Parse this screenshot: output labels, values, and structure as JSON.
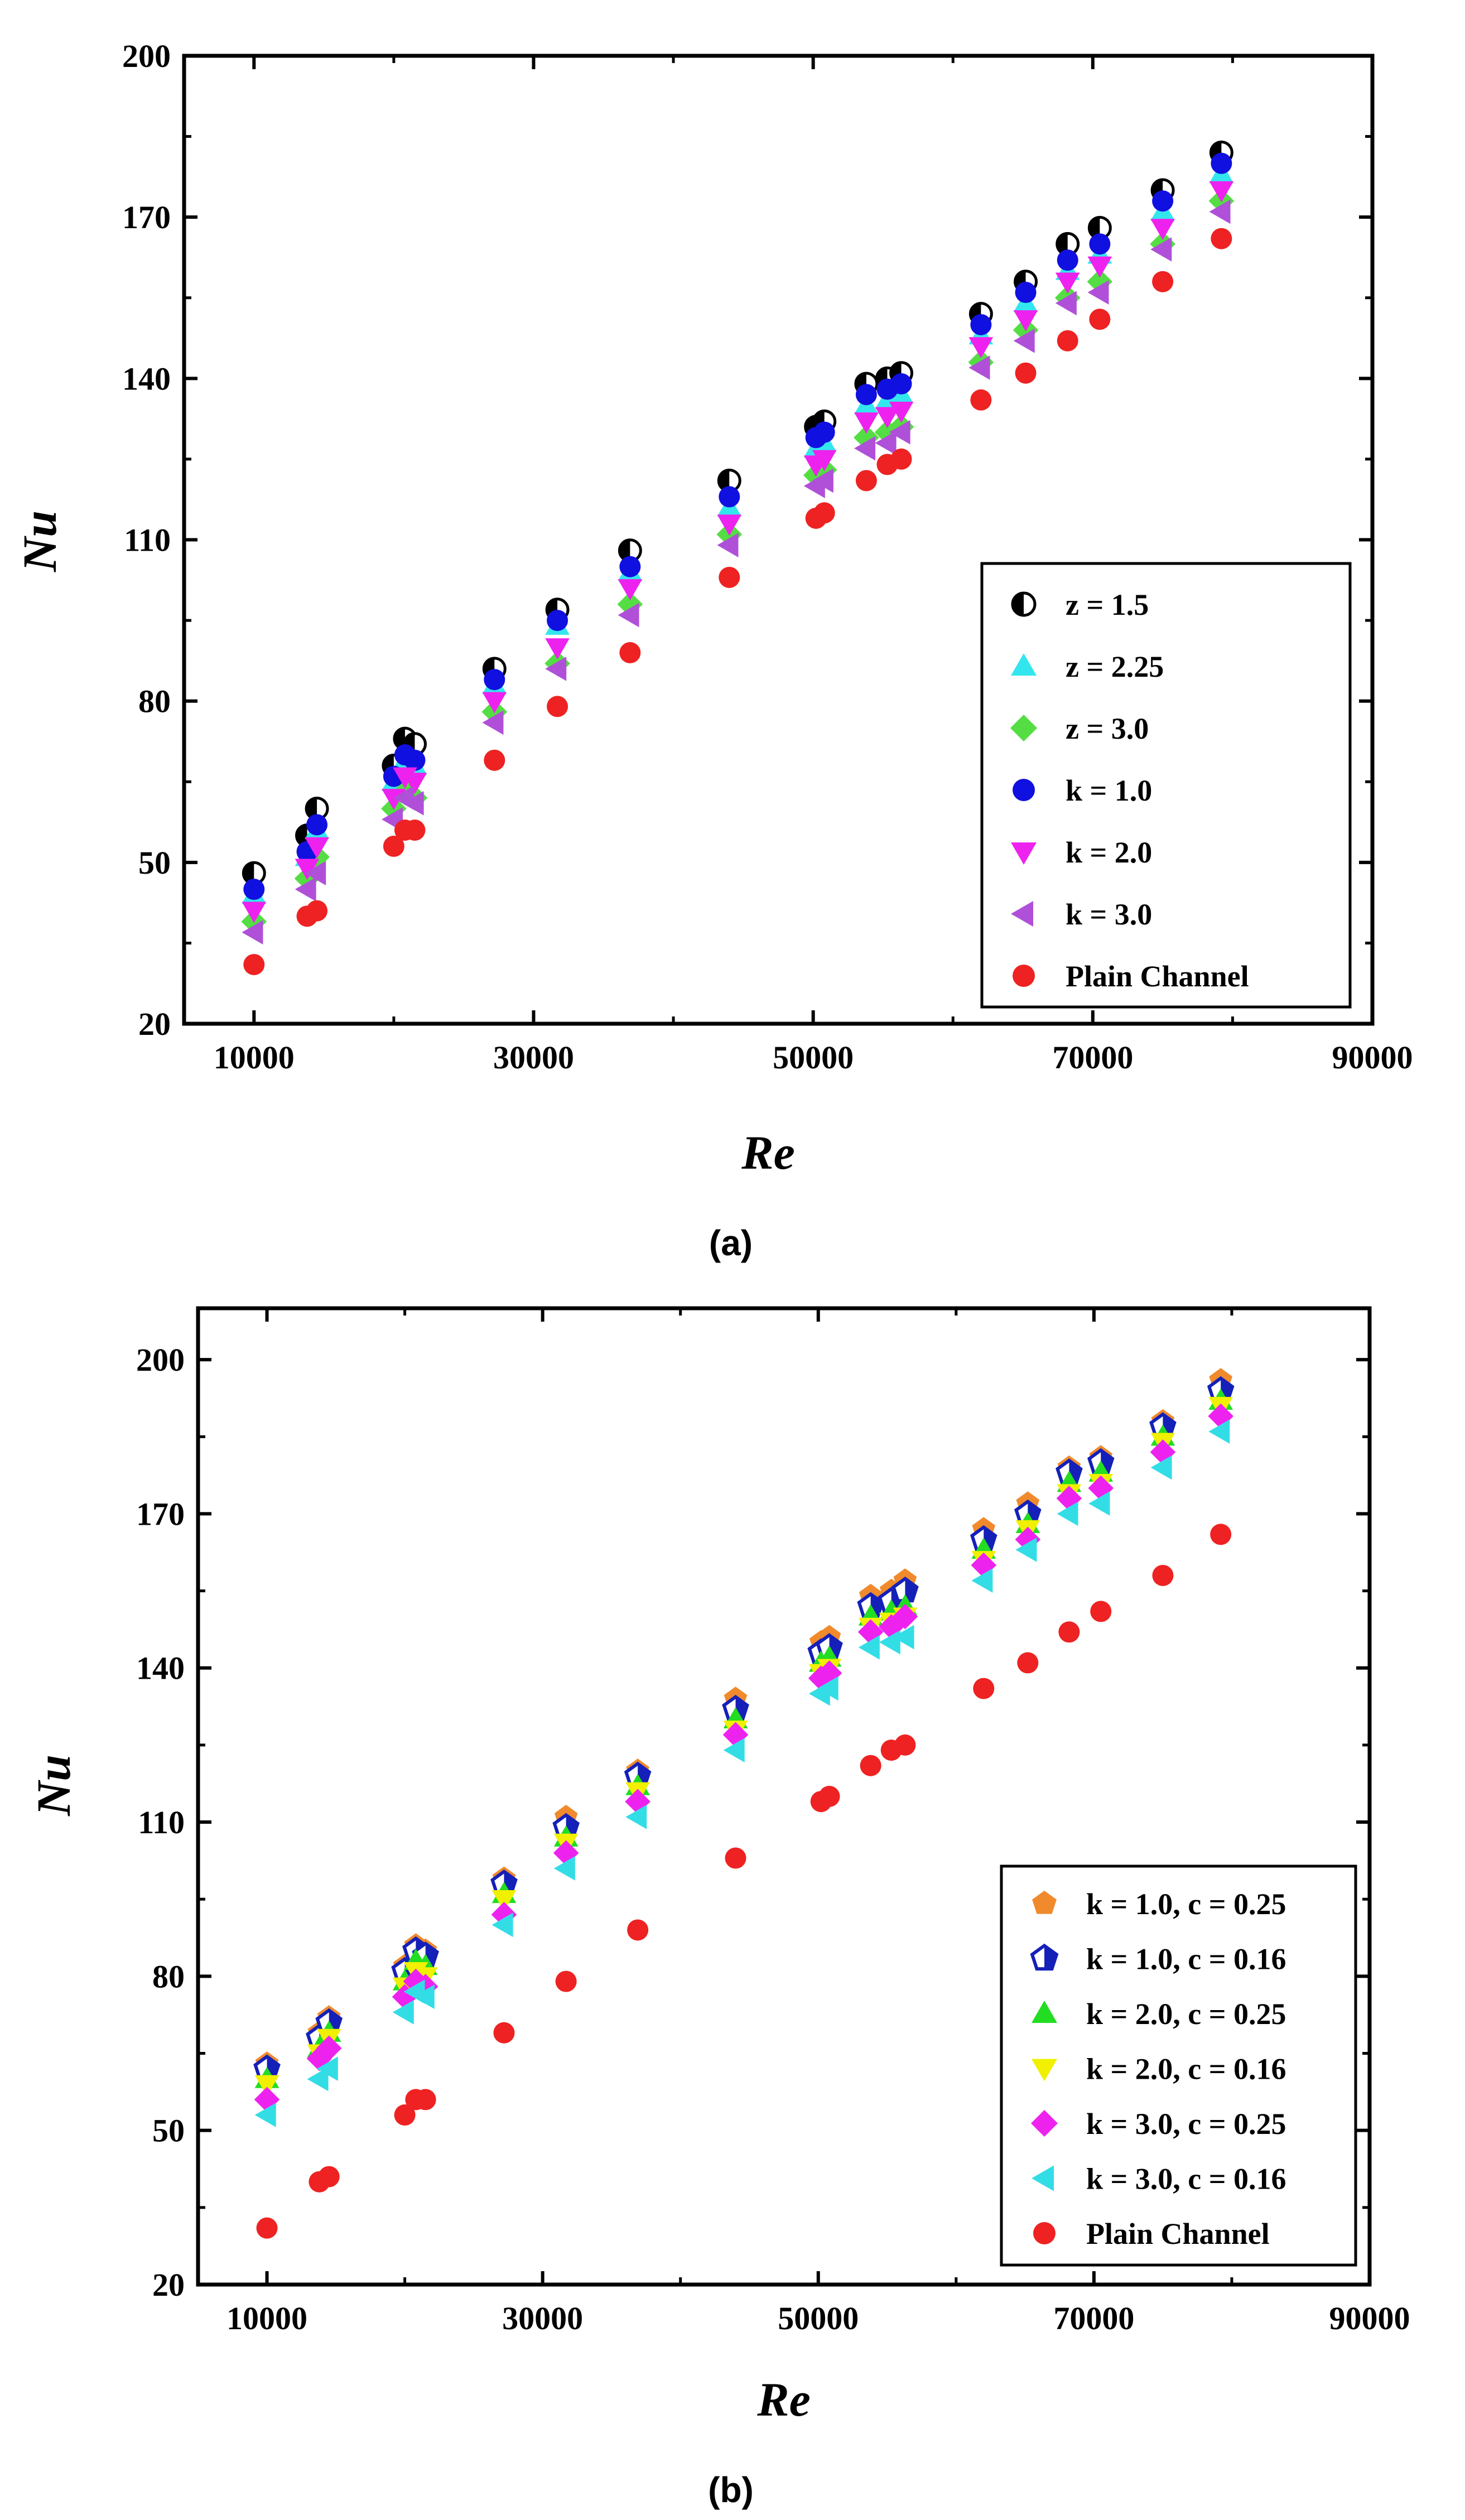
{
  "chart_data": [
    {
      "type": "scatter",
      "caption": "(a)",
      "xlabel": "Re",
      "ylabel": "Nu",
      "xlim": [
        5000,
        90000
      ],
      "ylim": [
        20,
        200
      ],
      "xticks": [
        10000,
        30000,
        50000,
        70000,
        90000
      ],
      "yticks": [
        20,
        50,
        80,
        110,
        140,
        170,
        200
      ],
      "legend_position": "bottom-right",
      "series": [
        {
          "name": "z = 1.5",
          "marker": "halfcircle",
          "color": "#000000",
          "x": [
            10000,
            13800,
            14500,
            20000,
            20800,
            21500,
            27200,
            31700,
            36900,
            44000,
            50200,
            50800,
            53800,
            55300,
            56300,
            62000,
            65200,
            68200,
            70500,
            75000,
            79200
          ],
          "y": [
            48,
            55,
            60,
            68,
            73,
            72,
            86,
            97,
            108,
            121,
            131,
            132,
            139,
            140,
            141,
            152,
            158,
            165,
            168,
            175,
            182
          ]
        },
        {
          "name": "z = 2.25",
          "marker": "triangle-up",
          "color": "#33e6ee",
          "x": [
            10000,
            13800,
            14500,
            20000,
            20800,
            21500,
            27200,
            31700,
            36900,
            44000,
            50200,
            50800,
            53800,
            55300,
            56300,
            62000,
            65200,
            68200,
            70500,
            75000,
            79200
          ],
          "y": [
            44,
            51,
            56,
            65,
            69,
            68,
            83,
            94,
            104,
            116,
            127,
            128,
            135,
            136,
            137,
            148,
            154,
            160,
            163,
            171,
            178
          ]
        },
        {
          "name": "z = 3.0",
          "marker": "diamond",
          "color": "#55dd44",
          "x": [
            10000,
            13800,
            14500,
            20000,
            20800,
            21500,
            27200,
            31700,
            36900,
            44000,
            50200,
            50800,
            53800,
            55300,
            56300,
            62000,
            65200,
            68200,
            70500,
            75000,
            79200
          ],
          "y": [
            39,
            47,
            51,
            60,
            63,
            62,
            78,
            87,
            98,
            111,
            122,
            123,
            129,
            130,
            131,
            143,
            149,
            155,
            158,
            165,
            173
          ]
        },
        {
          "name": "k = 1.0",
          "marker": "circle",
          "color": "#1010e0",
          "x": [
            10000,
            13800,
            14500,
            20000,
            20800,
            21500,
            27200,
            31700,
            36900,
            44000,
            50200,
            50800,
            53800,
            55300,
            56300,
            62000,
            65200,
            68200,
            70500,
            75000,
            79200
          ],
          "y": [
            45,
            52,
            57,
            66,
            70,
            69,
            84,
            95,
            105,
            118,
            129,
            130,
            137,
            138,
            139,
            150,
            156,
            162,
            165,
            173,
            180
          ]
        },
        {
          "name": "k = 2.0",
          "marker": "triangle-down",
          "color": "#ee22ee",
          "x": [
            10000,
            13800,
            14500,
            20000,
            20800,
            21500,
            27200,
            31700,
            36900,
            44000,
            50200,
            50800,
            53800,
            55300,
            56300,
            62000,
            65200,
            68200,
            70500,
            75000,
            79200
          ],
          "y": [
            41,
            49,
            53,
            62,
            66,
            65,
            80,
            90,
            101,
            113,
            124,
            125,
            132,
            133,
            134,
            146,
            151,
            158,
            161,
            168,
            175
          ]
        },
        {
          "name": "k = 3.0",
          "marker": "triangle-left",
          "color": "#b050d8",
          "x": [
            10000,
            13800,
            14500,
            20000,
            20800,
            21500,
            27200,
            31700,
            36900,
            44000,
            50200,
            50800,
            53800,
            55300,
            56300,
            62000,
            65200,
            68200,
            70500,
            75000,
            79200
          ],
          "y": [
            37,
            45,
            48,
            58,
            62,
            61,
            76,
            86,
            96,
            109,
            120,
            121,
            127,
            128,
            130,
            142,
            147,
            154,
            156,
            164,
            171
          ]
        },
        {
          "name": "Plain Channel",
          "marker": "circle",
          "color": "#ee2222",
          "x": [
            10000,
            13800,
            14500,
            20000,
            20800,
            21500,
            27200,
            31700,
            36900,
            44000,
            50200,
            50800,
            53800,
            55300,
            56300,
            62000,
            65200,
            68200,
            70500,
            75000,
            79200
          ],
          "y": [
            31,
            40,
            41,
            53,
            56,
            56,
            69,
            79,
            89,
            103,
            114,
            115,
            121,
            124,
            125,
            136,
            141,
            147,
            151,
            158,
            166
          ]
        }
      ]
    },
    {
      "type": "scatter",
      "caption": "(b)",
      "xlabel": "Re",
      "ylabel": "Nu",
      "xlim": [
        5000,
        90000
      ],
      "ylim": [
        20,
        210
      ],
      "xticks": [
        10000,
        30000,
        50000,
        70000,
        90000
      ],
      "yticks": [
        20,
        50,
        80,
        110,
        140,
        170,
        200
      ],
      "legend_position": "bottom-right",
      "series": [
        {
          "name": "k = 1.0, c = 0.25",
          "marker": "pentagon",
          "color": "#f08a2c",
          "x": [
            10000,
            13800,
            14500,
            20000,
            20800,
            21500,
            27200,
            31700,
            36900,
            44000,
            50200,
            50800,
            53800,
            55300,
            56300,
            62000,
            65200,
            68200,
            70500,
            75000,
            79200
          ],
          "y": [
            63,
            69,
            72,
            82,
            86,
            85,
            99,
            111,
            120,
            134,
            145,
            146,
            154,
            155,
            157,
            167,
            172,
            179,
            181,
            188,
            196
          ]
        },
        {
          "name": "k = 1.0, c = 0.16",
          "marker": "pentagon-half",
          "color": "#1520b8",
          "x": [
            10000,
            13800,
            14500,
            20000,
            20800,
            21500,
            27200,
            31700,
            36900,
            44000,
            50200,
            50800,
            53800,
            55300,
            56300,
            62000,
            65200,
            68200,
            70500,
            75000,
            79200
          ],
          "y": [
            62,
            68,
            71,
            81,
            85,
            84,
            98,
            109,
            119,
            132,
            143,
            144,
            152,
            153,
            155,
            165,
            170,
            178,
            180,
            187,
            194
          ]
        },
        {
          "name": "k = 2.0, c = 0.25",
          "marker": "triangle-up",
          "color": "#22dd22",
          "x": [
            10000,
            13800,
            14500,
            20000,
            20800,
            21500,
            27200,
            31700,
            36900,
            44000,
            50200,
            50800,
            53800,
            55300,
            56300,
            62000,
            65200,
            68200,
            70500,
            75000,
            79200
          ],
          "y": [
            60,
            66,
            69,
            79,
            83,
            82,
            96,
            107,
            117,
            130,
            141,
            142,
            150,
            151,
            152,
            163,
            168,
            176,
            178,
            185,
            192
          ]
        },
        {
          "name": "k = 2.0, c = 0.16",
          "marker": "triangle-down",
          "color": "#f0f000",
          "x": [
            10000,
            13800,
            14500,
            20000,
            20800,
            21500,
            27200,
            31700,
            36900,
            44000,
            50200,
            50800,
            53800,
            55300,
            56300,
            62000,
            65200,
            68200,
            70500,
            75000,
            79200
          ],
          "y": [
            59,
            65,
            68,
            78,
            81,
            80,
            95,
            106,
            116,
            128,
            139,
            140,
            148,
            149,
            150,
            161,
            167,
            174,
            176,
            184,
            191
          ]
        },
        {
          "name": "k = 3.0, c = 0.25",
          "marker": "diamond",
          "color": "#ee22ee",
          "x": [
            10000,
            13800,
            14500,
            20000,
            20800,
            21500,
            27200,
            31700,
            36900,
            44000,
            50200,
            50800,
            53800,
            55300,
            56300,
            62000,
            65200,
            68200,
            70500,
            75000,
            79200
          ],
          "y": [
            56,
            64,
            66,
            76,
            79,
            78,
            92,
            104,
            114,
            127,
            138,
            139,
            147,
            148,
            150,
            160,
            165,
            173,
            175,
            182,
            189
          ]
        },
        {
          "name": "k = 3.0, c = 0.16",
          "marker": "triangle-left",
          "color": "#33dde6",
          "x": [
            10000,
            13800,
            14500,
            20000,
            20800,
            21500,
            27200,
            31700,
            36900,
            44000,
            50200,
            50800,
            53800,
            55300,
            56300,
            62000,
            65200,
            68200,
            70500,
            75000,
            79200
          ],
          "y": [
            53,
            60,
            62,
            73,
            77,
            76,
            90,
            101,
            111,
            124,
            135,
            136,
            144,
            145,
            146,
            157,
            163,
            170,
            172,
            179,
            186
          ]
        },
        {
          "name": "Plain Channel",
          "marker": "circle",
          "color": "#ee2222",
          "x": [
            10000,
            13800,
            14500,
            20000,
            20800,
            21500,
            27200,
            31700,
            36900,
            44000,
            50200,
            50800,
            53800,
            55300,
            56300,
            62000,
            65200,
            68200,
            70500,
            75000,
            79200
          ],
          "y": [
            31,
            40,
            41,
            53,
            56,
            56,
            69,
            79,
            89,
            103,
            114,
            115,
            121,
            124,
            125,
            136,
            141,
            147,
            151,
            158,
            166
          ]
        }
      ]
    }
  ]
}
